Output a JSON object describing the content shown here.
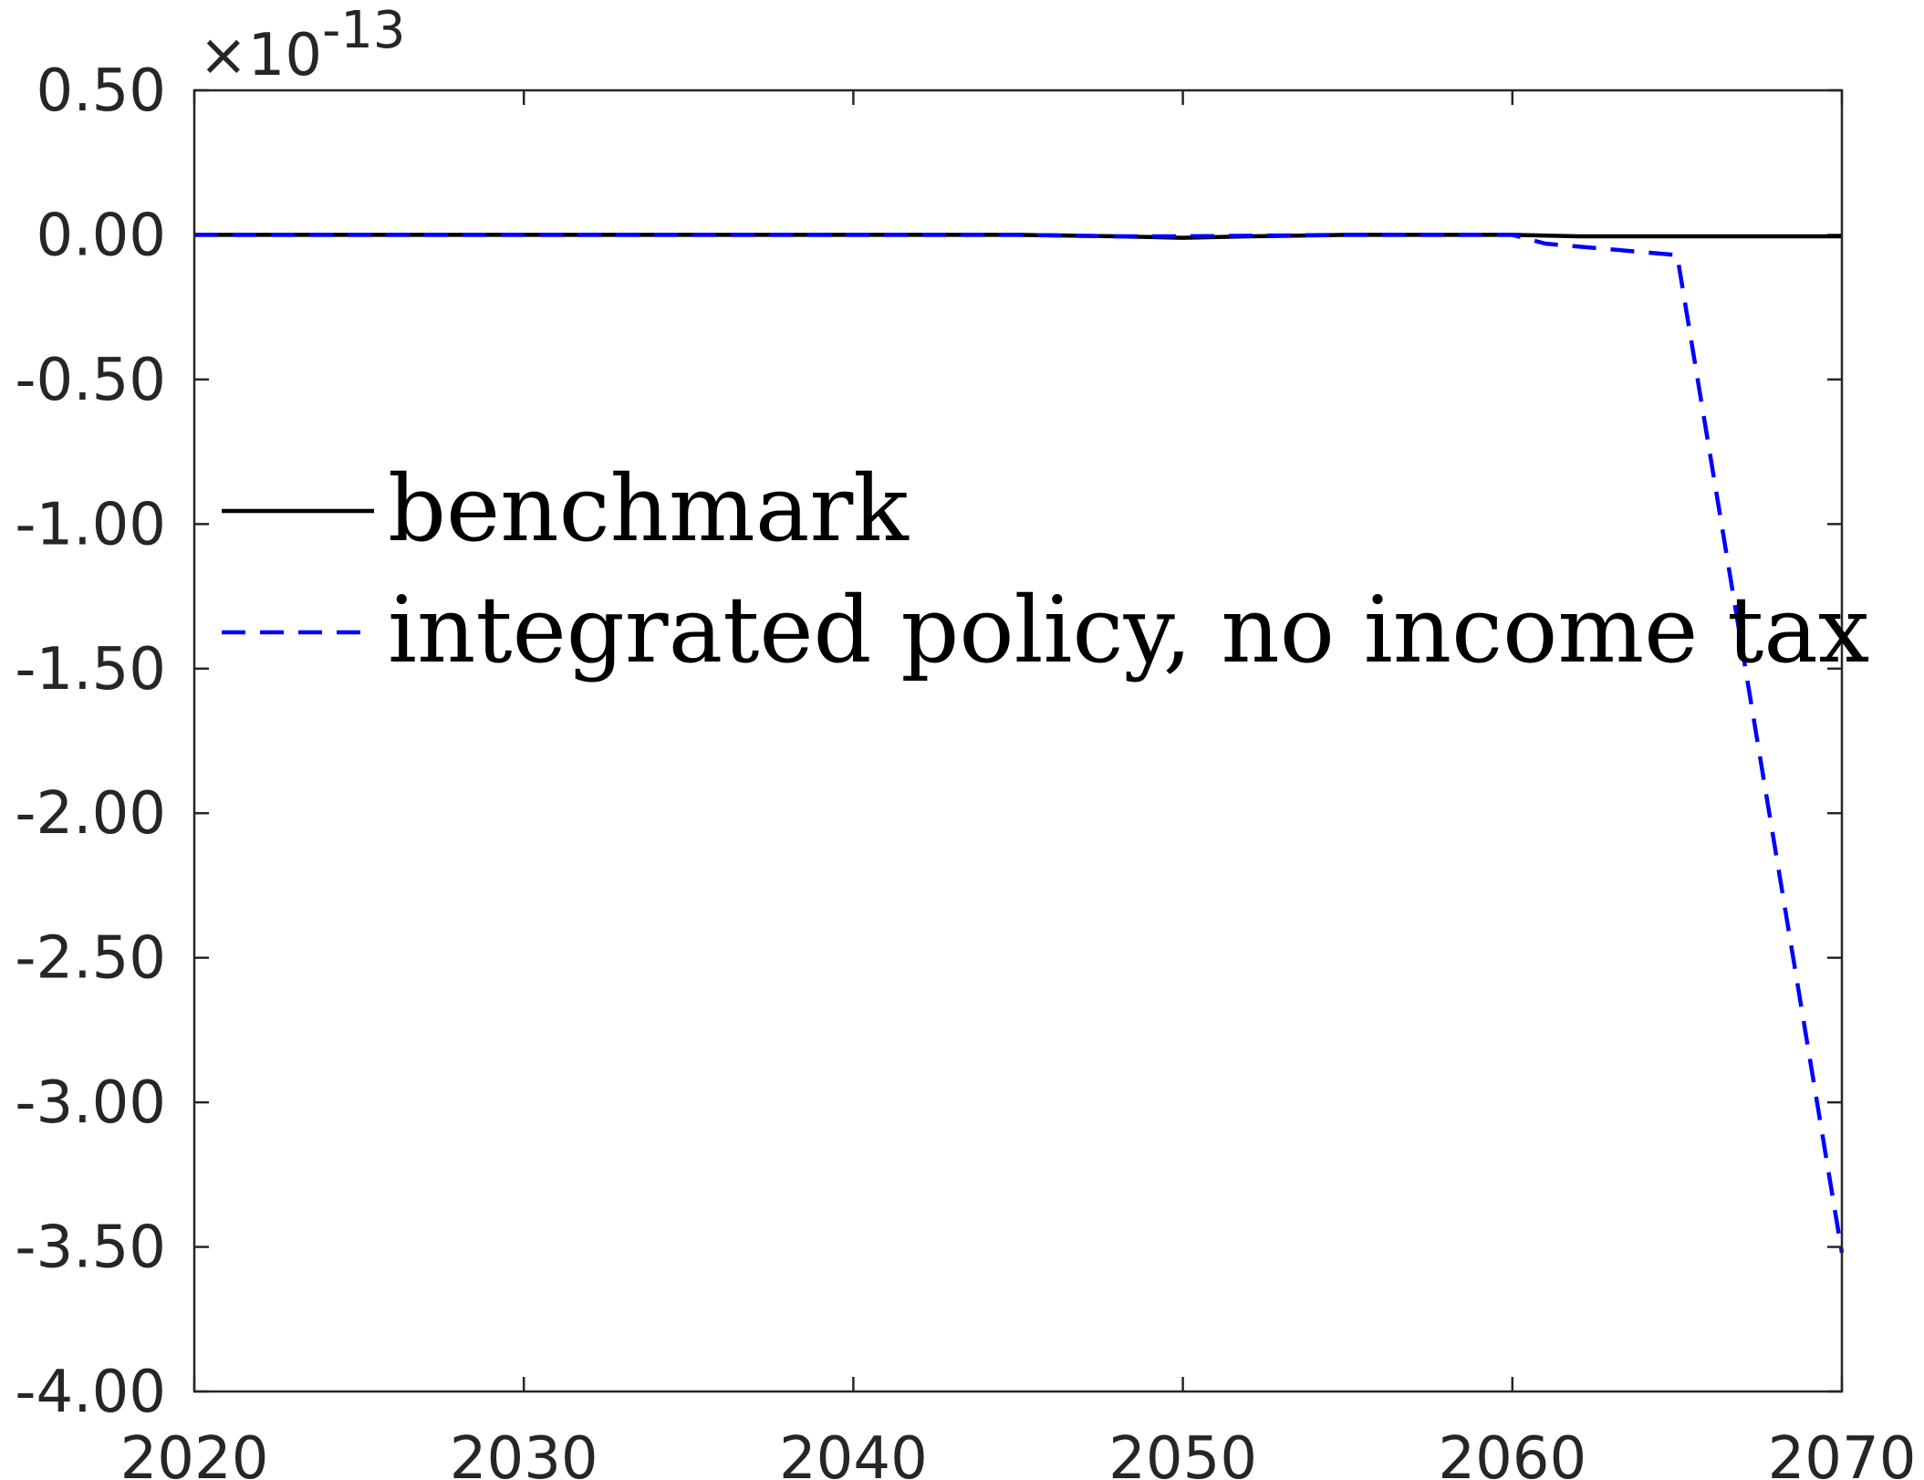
{
  "chart_data": {
    "type": "line",
    "title": "",
    "xlabel": "",
    "ylabel": "",
    "xlim": [
      2020,
      2070
    ],
    "ylim": [
      -4.0,
      0.5
    ],
    "y_exponent_label": "×10",
    "y_exponent_power": "-13",
    "xticks": [
      2020,
      2030,
      2040,
      2050,
      2060,
      2070
    ],
    "xtick_labels": [
      "2020",
      "2030",
      "2040",
      "2050",
      "2060",
      "2070"
    ],
    "yticks": [
      0.5,
      0.0,
      -0.5,
      -1.0,
      -1.5,
      -2.0,
      -2.5,
      -3.0,
      -3.5,
      -4.0
    ],
    "ytick_labels": [
      "0.50",
      "0.00",
      "-0.50",
      "-1.00",
      "-1.50",
      "-2.00",
      "-2.50",
      "-3.00",
      "-3.50",
      "-4.00"
    ],
    "grid": false,
    "legend_position": "middle-left",
    "series": [
      {
        "name": "benchmark",
        "color": "#000000",
        "dash": "solid",
        "x": [
          2020,
          2030,
          2040,
          2045,
          2048,
          2050,
          2052,
          2055,
          2060,
          2062,
          2065,
          2070
        ],
        "y": [
          0.0,
          0.0,
          0.0,
          0.0,
          -0.005,
          -0.01,
          -0.005,
          0.0,
          0.0,
          -0.005,
          -0.005,
          -0.005
        ]
      },
      {
        "name": "integrated policy, no income tax",
        "color": "#0000ff",
        "dash": "dashed",
        "x": [
          2020,
          2030,
          2040,
          2045,
          2048,
          2050,
          2055,
          2060,
          2061,
          2065,
          2070
        ],
        "y": [
          0.0,
          0.0,
          0.0,
          0.0,
          -0.005,
          -0.005,
          0.0,
          0.0,
          -0.03,
          -0.07,
          -3.52
        ]
      }
    ]
  }
}
